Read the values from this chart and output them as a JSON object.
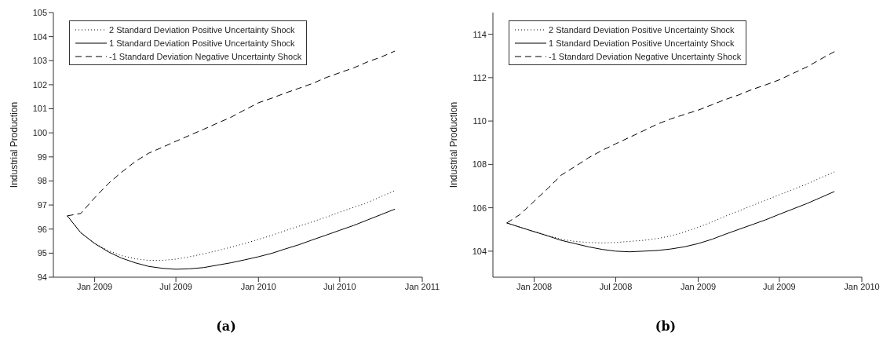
{
  "chart_data": [
    {
      "type": "line",
      "ylabel": "Industrial Production",
      "annotations": [
        "(a)"
      ],
      "legend": "top left",
      "grid": false,
      "x": [
        "2008-11",
        "2008-12",
        "2009-01",
        "2009-02",
        "2009-03",
        "2009-04",
        "2009-05",
        "2009-06",
        "2009-07",
        "2009-08",
        "2009-09",
        "2009-10",
        "2009-11",
        "2009-12",
        "2010-01",
        "2010-02",
        "2010-03",
        "2010-04",
        "2010-05",
        "2010-06",
        "2010-07",
        "2010-08",
        "2010-09",
        "2010-10",
        "2010-11"
      ],
      "xlim": [
        "2008-10",
        "2011-01"
      ],
      "xticks": [
        {
          "value": "2009-01",
          "label": "Jan 2009"
        },
        {
          "value": "2009-07",
          "label": "Jul 2009"
        },
        {
          "value": "2010-01",
          "label": "Jan 2010"
        },
        {
          "value": "2010-07",
          "label": "Jul 2010"
        },
        {
          "value": "2011-01",
          "label": "Jan 2011"
        }
      ],
      "ylim": [
        94,
        105
      ],
      "yticks": [
        94,
        95,
        96,
        97,
        98,
        99,
        100,
        101,
        102,
        103,
        104,
        105
      ],
      "series": [
        {
          "name": "2 Standard Deviation Positive Uncertainty Shock",
          "color": "#000000",
          "line_style": "dotted",
          "values": [
            96.55,
            95.85,
            95.4,
            95.1,
            94.9,
            94.77,
            94.7,
            94.7,
            94.75,
            94.85,
            94.97,
            95.1,
            95.25,
            95.4,
            95.57,
            95.75,
            95.93,
            96.12,
            96.3,
            96.5,
            96.7,
            96.9,
            97.1,
            97.35,
            97.6
          ]
        },
        {
          "name": "1 Standard Deviation Positive Uncertainty Shock",
          "color": "#000000",
          "line_style": "solid",
          "values": [
            96.55,
            95.85,
            95.4,
            95.05,
            94.8,
            94.6,
            94.45,
            94.37,
            94.33,
            94.35,
            94.4,
            94.5,
            94.6,
            94.72,
            94.85,
            95.0,
            95.17,
            95.35,
            95.55,
            95.75,
            95.95,
            96.15,
            96.38,
            96.6,
            96.83
          ]
        },
        {
          "name": "-1 Standard Deviation Negative Uncertainty Shock",
          "color": "#000000",
          "line_style": "dashed",
          "values": [
            96.55,
            96.65,
            97.3,
            97.9,
            98.35,
            98.8,
            99.15,
            99.4,
            99.65,
            99.9,
            100.15,
            100.4,
            100.65,
            100.95,
            101.25,
            101.45,
            101.65,
            101.85,
            102.05,
            102.3,
            102.5,
            102.7,
            102.95,
            103.15,
            103.4
          ]
        }
      ]
    },
    {
      "type": "line",
      "ylabel": "Industrial Production",
      "annotations": [
        "(b)"
      ],
      "legend": "top left",
      "grid": false,
      "x": [
        "2007-11",
        "2007-12",
        "2008-01",
        "2008-02",
        "2008-03",
        "2008-04",
        "2008-05",
        "2008-06",
        "2008-07",
        "2008-08",
        "2008-09",
        "2008-10",
        "2008-11",
        "2008-12",
        "2009-01",
        "2009-02",
        "2009-03",
        "2009-04",
        "2009-05",
        "2009-06",
        "2009-07",
        "2009-08",
        "2009-09",
        "2009-10",
        "2009-11"
      ],
      "xlim": [
        "2007-10",
        "2010-01"
      ],
      "xticks": [
        {
          "value": "2008-01",
          "label": "Jan 2008"
        },
        {
          "value": "2008-07",
          "label": "Jul 2008"
        },
        {
          "value": "2009-01",
          "label": "Jan 2009"
        },
        {
          "value": "2009-07",
          "label": "Jul 2009"
        },
        {
          "value": "2010-01",
          "label": "Jan 2010"
        }
      ],
      "ylim": [
        102.8,
        115
      ],
      "yticks": [
        104,
        106,
        108,
        110,
        112,
        114
      ],
      "series": [
        {
          "name": "2 Standard Deviation Positive Uncertainty Shock",
          "color": "#000000",
          "line_style": "dotted",
          "values": [
            105.3,
            105.1,
            104.9,
            104.72,
            104.55,
            104.45,
            104.4,
            104.38,
            104.4,
            104.45,
            104.5,
            104.58,
            104.7,
            104.88,
            105.1,
            105.35,
            105.6,
            105.85,
            106.1,
            106.35,
            106.6,
            106.85,
            107.1,
            107.38,
            107.65
          ]
        },
        {
          "name": "1 Standard Deviation Positive Uncertainty Shock",
          "color": "#000000",
          "line_style": "solid",
          "values": [
            105.3,
            105.1,
            104.9,
            104.7,
            104.5,
            104.35,
            104.2,
            104.08,
            104.0,
            103.97,
            104.0,
            104.03,
            104.1,
            104.2,
            104.35,
            104.55,
            104.77,
            105.0,
            105.22,
            105.45,
            105.7,
            105.95,
            106.2,
            106.47,
            106.75
          ]
        },
        {
          "name": "-1 Standard Deviation Negative Uncertainty Shock",
          "color": "#000000",
          "line_style": "dashed",
          "values": [
            105.3,
            105.7,
            106.3,
            106.9,
            107.5,
            107.9,
            108.3,
            108.65,
            108.95,
            109.25,
            109.55,
            109.85,
            110.1,
            110.3,
            110.5,
            110.75,
            110.98,
            111.2,
            111.45,
            111.67,
            111.9,
            112.2,
            112.5,
            112.85,
            113.2
          ]
        }
      ]
    }
  ]
}
